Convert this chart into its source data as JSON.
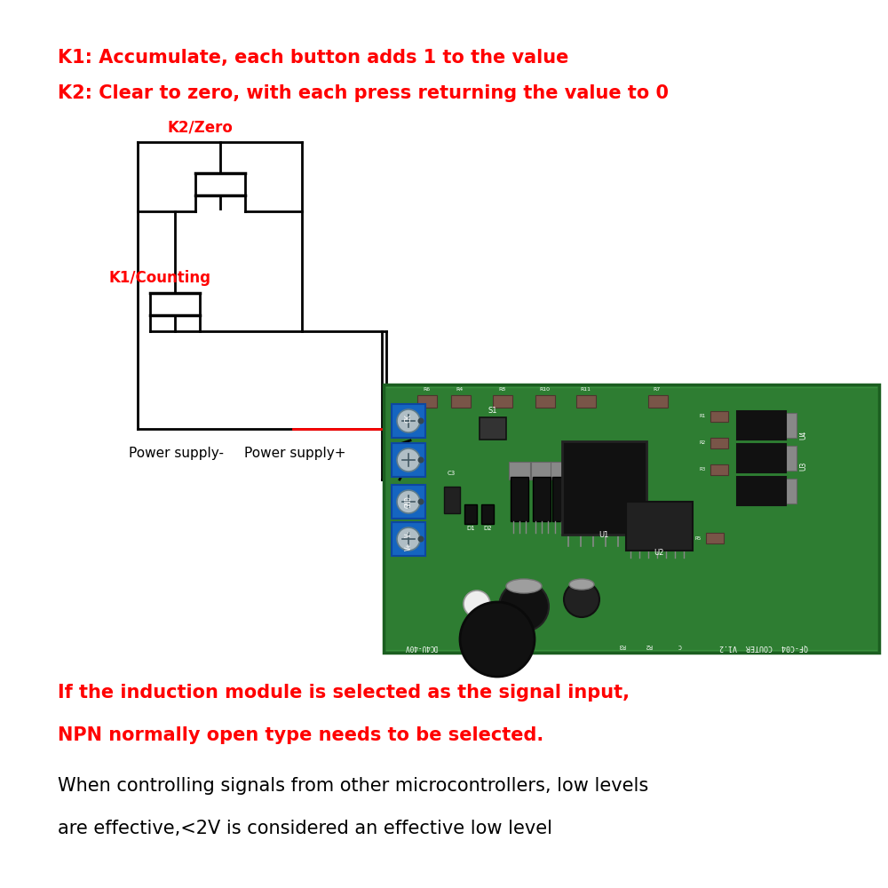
{
  "bg_color": "#ffffff",
  "title_lines_red": [
    "K1: Accumulate, each button adds 1 to the value",
    "K2: Clear to zero, with each press returning the value to 0"
  ],
  "label_k2": "K2/Zero",
  "label_k1": "K1/Counting",
  "label_power_neg": "Power supply-",
  "label_power_pos": "Power supply+",
  "bottom_red_lines": [
    "If the induction module is selected as the signal input,",
    "NPN normally open type needs to be selected."
  ],
  "bottom_black_lines": [
    "When controlling signals from other microcontrollers, low levels",
    "are effective,<2V is considered an effective low level"
  ],
  "red_color": "#ff0000",
  "black_color": "#000000",
  "lw_circuit": 2.0
}
